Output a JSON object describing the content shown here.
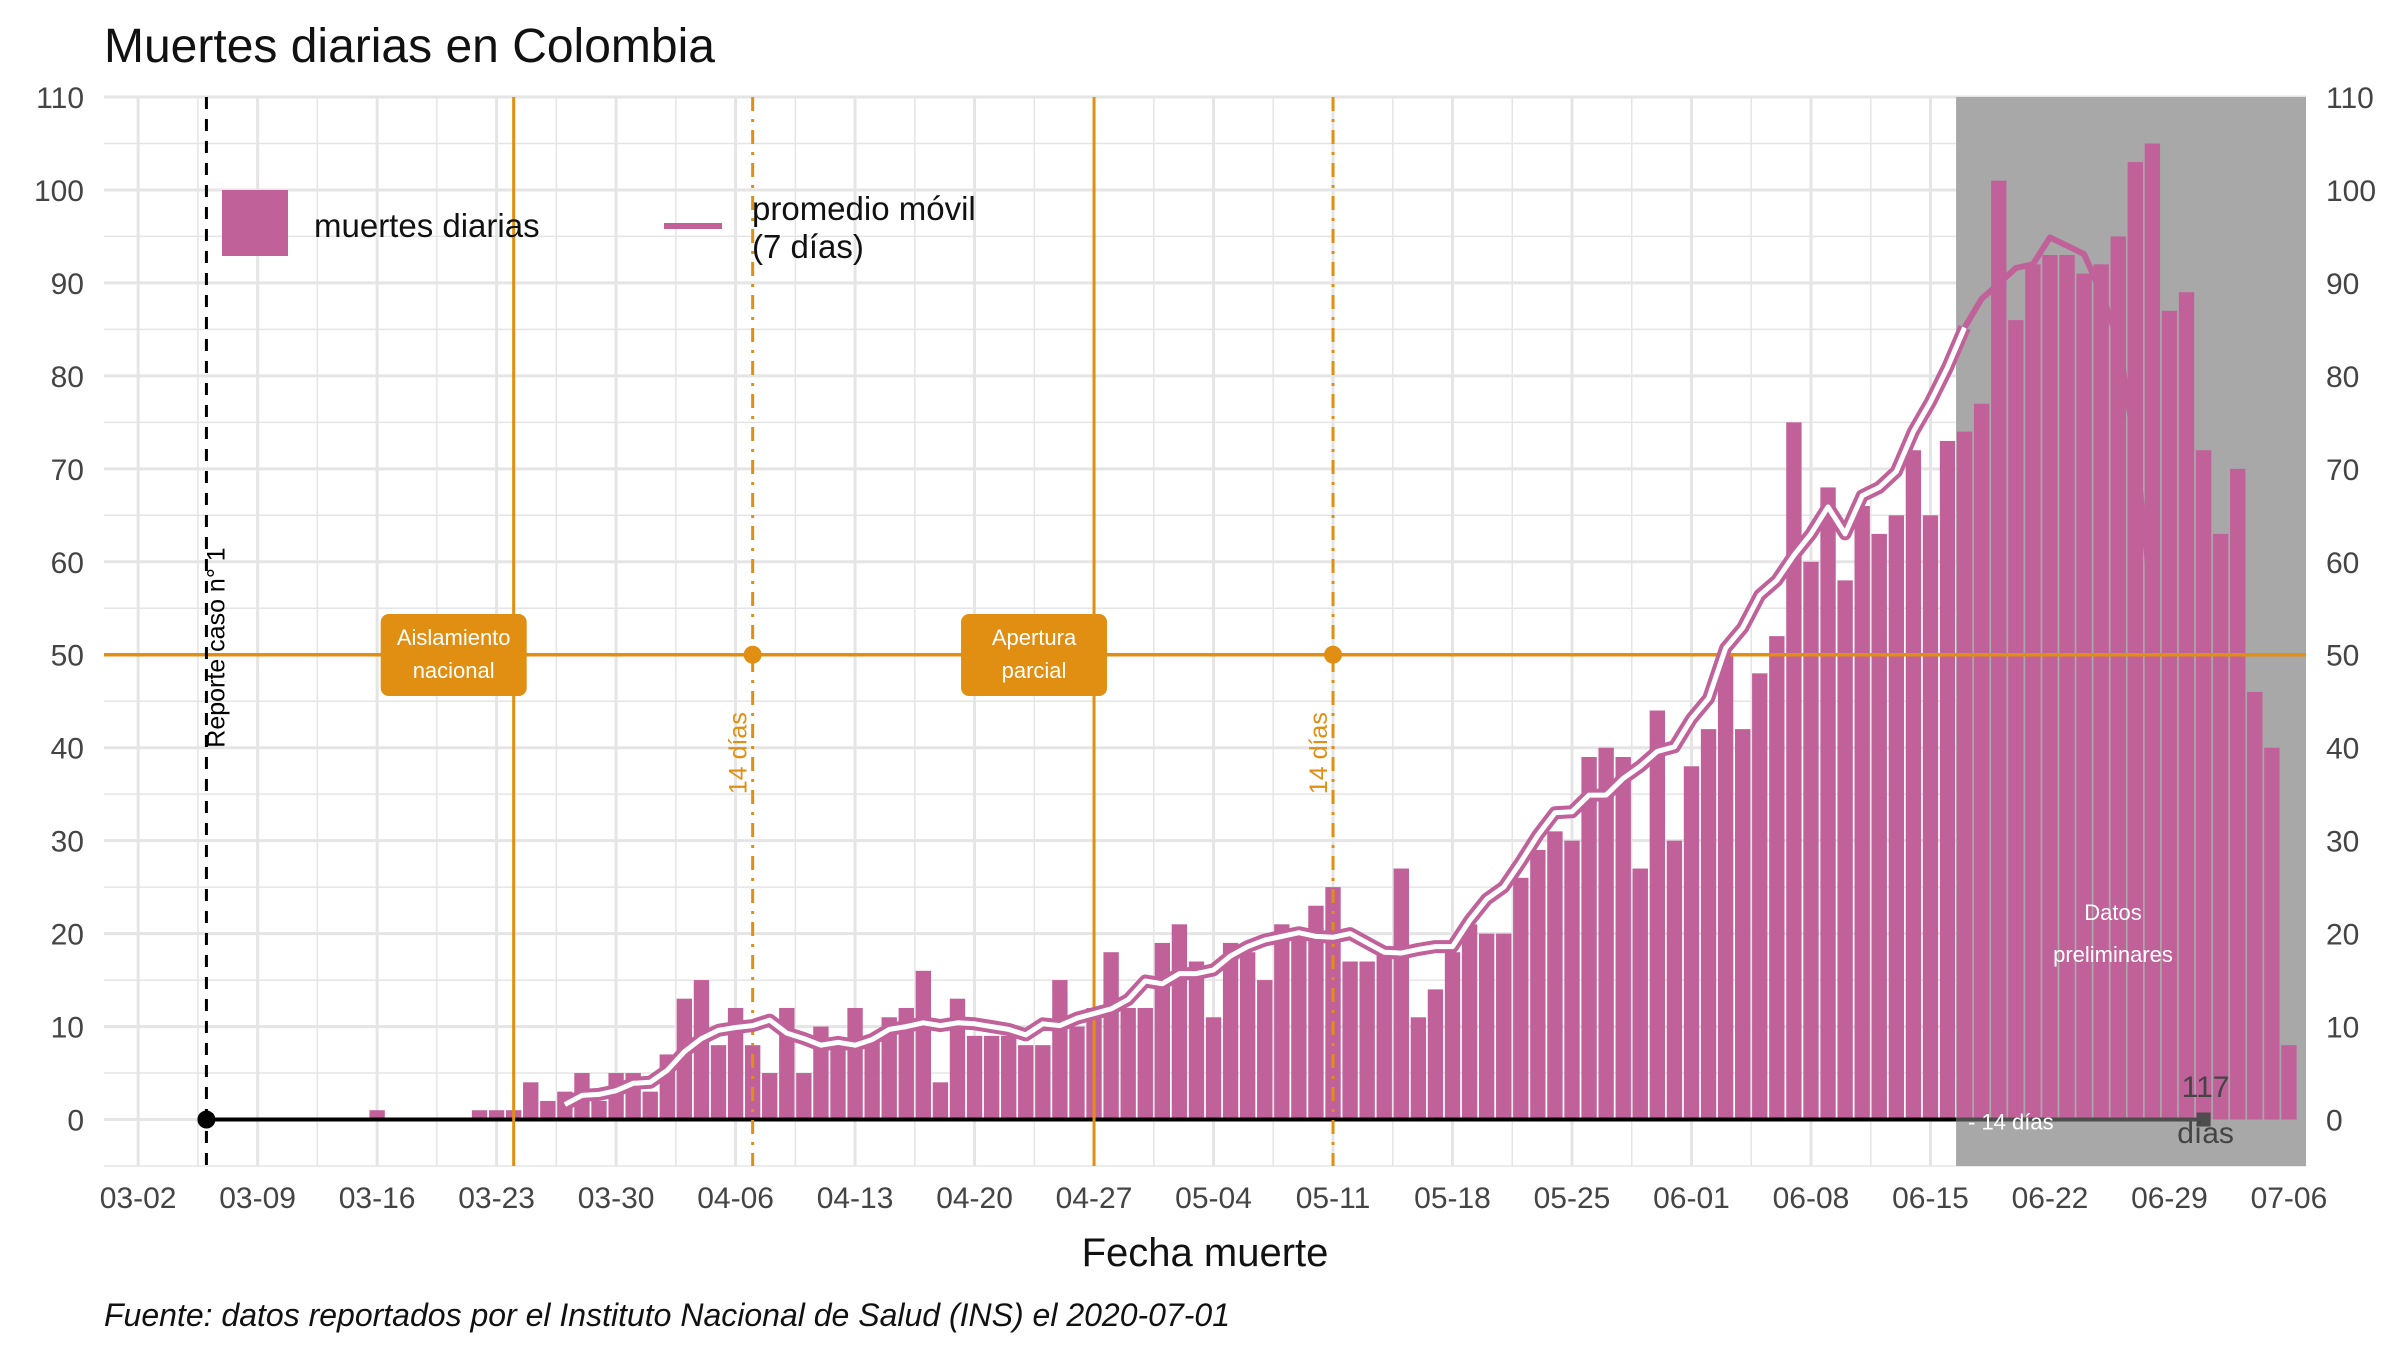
{
  "chart_data": {
    "type": "bar",
    "title": "Muertes diarias en Colombia",
    "xlabel": "Fecha muerte",
    "ylabel": "",
    "ylim": [
      -5,
      110
    ],
    "yticks": [
      0,
      10,
      20,
      30,
      40,
      50,
      60,
      70,
      80,
      90,
      100,
      110
    ],
    "xlim": [
      "2020-02-29",
      "2020-07-07"
    ],
    "xticks": [
      "03-02",
      "03-09",
      "03-16",
      "03-23",
      "03-30",
      "04-06",
      "04-13",
      "04-20",
      "04-27",
      "05-04",
      "05-11",
      "05-18",
      "05-25",
      "06-01",
      "06-08",
      "06-15",
      "06-22",
      "06-29",
      "07-06"
    ],
    "caption": "Fuente: datos reportados por el Instituto Nacional de Salud (INS) el 2020-07-01",
    "legend_position": "top-left",
    "series": [
      {
        "name": "muertes diarias",
        "kind": "bar",
        "color": "#c1619a",
        "start_date": "2020-03-16",
        "values": [
          1,
          0,
          0,
          0,
          0,
          0,
          1,
          1,
          1,
          4,
          2,
          3,
          5,
          2,
          5,
          5,
          3,
          7,
          13,
          15,
          8,
          12,
          8,
          5,
          12,
          5,
          10,
          8,
          12,
          9,
          11,
          12,
          16,
          4,
          13,
          9,
          9,
          9,
          8,
          8,
          15,
          10,
          12,
          18,
          12,
          12,
          19,
          21,
          17,
          11,
          19,
          18,
          15,
          21,
          20,
          23,
          25,
          17,
          17,
          18,
          27,
          11,
          14,
          18,
          21,
          20,
          20,
          26,
          29,
          31,
          30,
          39,
          40,
          39,
          27,
          44,
          30,
          38,
          42,
          50,
          42,
          48,
          52,
          75,
          60,
          68,
          58,
          66,
          63,
          65,
          72,
          65,
          73,
          74,
          77,
          101,
          86,
          92,
          93,
          93,
          91,
          92,
          95,
          103,
          105,
          87,
          89,
          72,
          63,
          70,
          46,
          40,
          8
        ]
      },
      {
        "name": "promedio móvil (7 días)",
        "kind": "line",
        "color": "#c1619a",
        "start_date": "2020-03-27",
        "values": [
          1.6,
          2.6,
          2.7,
          3.1,
          3.9,
          4.0,
          5.3,
          7.3,
          8.7,
          9.6,
          9.9,
          10.1,
          10.7,
          9.3,
          8.7,
          8.0,
          8.3,
          8.0,
          8.6,
          9.7,
          10.0,
          10.4,
          10.1,
          10.4,
          10.3,
          10.0,
          9.7,
          9.1,
          10.3,
          10.1,
          10.9,
          11.4,
          11.9,
          12.9,
          14.9,
          14.6,
          15.7,
          15.7,
          16.1,
          17.6,
          18.6,
          19.3,
          19.7,
          20.1,
          19.7,
          19.6,
          20.0,
          19.0,
          18.0,
          17.9,
          18.3,
          18.6,
          18.6,
          21.4,
          23.7,
          25.0,
          27.7,
          30.6,
          33.0,
          33.1,
          34.9,
          34.9,
          36.7,
          38.0,
          39.6,
          40.1,
          43.1,
          45.3,
          50.7,
          52.9,
          56.4,
          58.0,
          60.7,
          63.0,
          65.9,
          63.0,
          67.1,
          68.0,
          69.7,
          74.0,
          77.2,
          80.9,
          85.2,
          88.3,
          89.9,
          91.6,
          92.0,
          94.9,
          94.0,
          93.1,
          88.9,
          83.9,
          72.4,
          55.3
        ]
      }
    ],
    "annotations": [
      {
        "type": "vline",
        "date": "2020-03-06",
        "style": "dashed",
        "color": "#000000",
        "label": "Reporte caso n° 1"
      },
      {
        "type": "vline",
        "date": "2020-03-24",
        "style": "solid",
        "color": "#e08f12",
        "label": "Aislamiento nacional",
        "label_lines": [
          "Aislamiento",
          "nacional"
        ]
      },
      {
        "type": "vline",
        "date": "2020-04-07",
        "style": "dashdot",
        "color": "#e08f12",
        "label": "14 días"
      },
      {
        "type": "vline",
        "date": "2020-04-27",
        "style": "solid",
        "color": "#e08f12",
        "label": "Apertura parcial",
        "label_lines": [
          "Apertura",
          "parcial"
        ]
      },
      {
        "type": "vline",
        "date": "2020-05-11",
        "style": "dashdot",
        "color": "#e08f12",
        "label": "14 días"
      },
      {
        "type": "hline",
        "value": 50,
        "color": "#e08f12"
      },
      {
        "type": "shaded",
        "from": "2020-06-17",
        "to": "2020-07-07",
        "color": "#a8a8a8",
        "label": "Datos preliminares",
        "label_lines": [
          "Datos",
          "preliminares"
        ]
      },
      {
        "type": "marker",
        "label": "- 14 días"
      },
      {
        "type": "marker",
        "label": "117 días",
        "label_lines": [
          "117",
          "días"
        ]
      }
    ],
    "colors": {
      "bars": "#c1619a",
      "annotation": "#e08f12",
      "shade": "#a8a8a8",
      "grid": "#e5e5e5"
    }
  }
}
